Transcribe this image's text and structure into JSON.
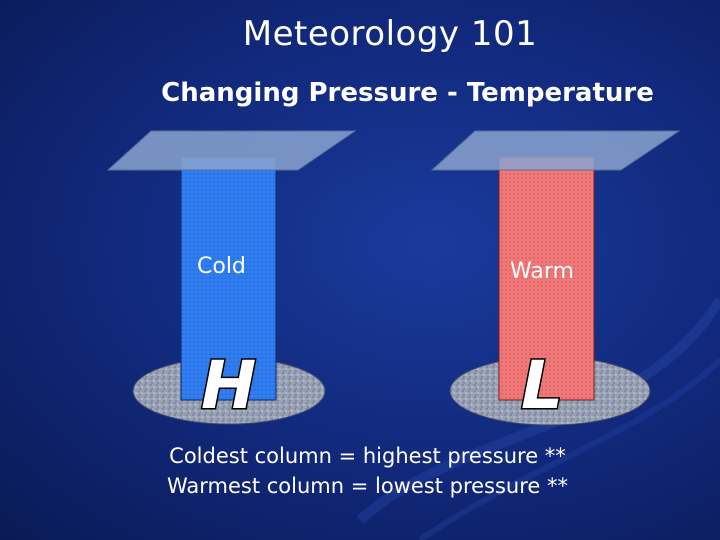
{
  "slide": {
    "title": "Meteorology 101",
    "subtitle": "Changing Pressure - Temperature"
  },
  "columns": [
    {
      "label": "Cold",
      "pressure_letter": "H",
      "color": "#2f7df0"
    },
    {
      "label": "Warm",
      "pressure_letter": "L",
      "color": "#f07878"
    }
  ],
  "captions": [
    "Coldest column = highest pressure **",
    "Warmest column = lowest pressure **"
  ],
  "colors": {
    "background": "#11287a",
    "lid": "#8aa3cf",
    "ground": "#9aa3b6"
  }
}
